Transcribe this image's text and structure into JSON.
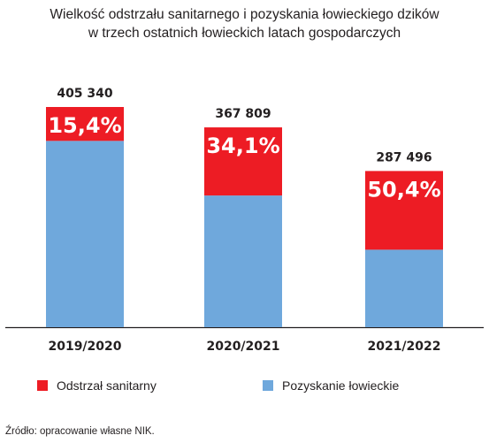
{
  "title": {
    "line1": "Wielkość odstrzału sanitarnego i pozyskania łowieckiego dzików",
    "line2": "w trzech ostatnich łowieckich latach gospodarczych"
  },
  "colors": {
    "sanitary": "#ed1c24",
    "hunting": "#6fa8dc",
    "axis": "#231f20"
  },
  "chart_data": {
    "type": "bar",
    "stacked": true,
    "categories": [
      "2019/2020",
      "2020/2021",
      "2021/2022"
    ],
    "totals": [
      405340,
      367809,
      287496
    ],
    "total_labels": [
      "405 340",
      "367 809",
      "287 496"
    ],
    "sanitary_share_labels": [
      "15,4%",
      "34,1%",
      "50,4%"
    ],
    "series": [
      {
        "name": "Odstrzał sanitarny",
        "values": [
          62422,
          125423,
          144898
        ]
      },
      {
        "name": "Pozyskanie łowieckie",
        "values": [
          342918,
          242386,
          142598
        ]
      }
    ],
    "ylim": [
      0,
      405340
    ]
  },
  "source": "Źródło: opracowanie własne NIK."
}
